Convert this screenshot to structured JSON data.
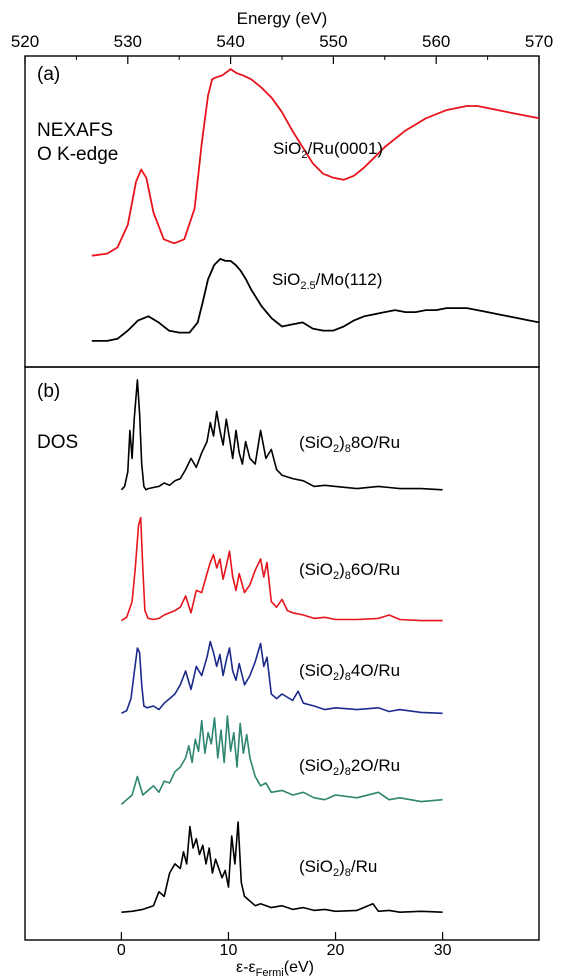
{
  "chart_data": [
    {
      "type": "line",
      "panel_label": "(a)",
      "annotation_lines": [
        "NEXAFS",
        "O K-edge"
      ],
      "xlabel": "Energy (eV)",
      "xlim": [
        520,
        570
      ],
      "xticks": [
        520,
        530,
        540,
        550,
        560,
        570
      ],
      "yticks": "none",
      "series": [
        {
          "label_parts": [
            [
              "SiO",
              "normal"
            ],
            [
              "2",
              "sub"
            ],
            [
              "/Ru(0001)",
              "normal"
            ]
          ],
          "color": "#e8141c",
          "x": [
            526.5,
            528,
            529,
            530,
            530.8,
            531.3,
            531.8,
            532.5,
            533.5,
            534.5,
            535.5,
            536.5,
            537.2,
            537.8,
            538.2,
            538.6,
            539.2,
            540,
            540.6,
            541.2,
            542,
            543,
            544,
            545,
            546,
            547,
            548,
            549,
            550,
            551,
            552,
            553,
            554,
            555,
            556,
            557,
            558,
            559,
            560,
            561,
            562,
            563,
            564,
            565,
            566,
            567,
            568,
            569,
            570
          ],
          "y": [
            0.07,
            0.08,
            0.11,
            0.22,
            0.43,
            0.49,
            0.45,
            0.28,
            0.15,
            0.13,
            0.15,
            0.3,
            0.62,
            0.85,
            0.93,
            0.94,
            0.95,
            0.98,
            0.96,
            0.95,
            0.93,
            0.89,
            0.84,
            0.77,
            0.68,
            0.6,
            0.52,
            0.47,
            0.45,
            0.44,
            0.46,
            0.5,
            0.55,
            0.6,
            0.64,
            0.68,
            0.71,
            0.74,
            0.76,
            0.78,
            0.79,
            0.8,
            0.8,
            0.79,
            0.78,
            0.77,
            0.76,
            0.75,
            0.74
          ]
        },
        {
          "label_parts": [
            [
              "SiO",
              "normal"
            ],
            [
              "2.5",
              "sub"
            ],
            [
              "/Mo(112)",
              "normal"
            ]
          ],
          "color": "#000000",
          "x": [
            526.5,
            528,
            529,
            530,
            531,
            532,
            533,
            534,
            535,
            536,
            536.8,
            537.3,
            537.8,
            538.4,
            539,
            539.5,
            540,
            540.5,
            541,
            541.5,
            542,
            543,
            544,
            545,
            546,
            547,
            548,
            549,
            550,
            551,
            552,
            553,
            554,
            555,
            556,
            557,
            558,
            559,
            560,
            561,
            562,
            563,
            564,
            565,
            566,
            567,
            568,
            569,
            570
          ],
          "y": [
            0.03,
            0.03,
            0.04,
            0.08,
            0.13,
            0.15,
            0.12,
            0.08,
            0.07,
            0.07,
            0.12,
            0.22,
            0.33,
            0.4,
            0.43,
            0.42,
            0.42,
            0.4,
            0.37,
            0.33,
            0.28,
            0.2,
            0.14,
            0.1,
            0.11,
            0.12,
            0.09,
            0.08,
            0.08,
            0.1,
            0.13,
            0.15,
            0.16,
            0.17,
            0.18,
            0.17,
            0.17,
            0.18,
            0.18,
            0.19,
            0.19,
            0.19,
            0.18,
            0.17,
            0.16,
            0.15,
            0.14,
            0.13,
            0.12
          ]
        }
      ]
    },
    {
      "type": "line",
      "panel_label": "(b)",
      "annotation_lines": [
        "DOS"
      ],
      "xlabel_parts": [
        [
          "ε-ε",
          "normal"
        ],
        [
          "Fermi",
          "sub"
        ],
        [
          "(eV)",
          "normal"
        ]
      ],
      "xlim": [
        -9,
        39
      ],
      "xticks": [
        0,
        10,
        20,
        30
      ],
      "yticks": "none",
      "series": [
        {
          "label_parts": [
            [
              "(SiO",
              "normal"
            ],
            [
              "2",
              "sub"
            ],
            [
              ")",
              "normal"
            ],
            [
              "8",
              "sub"
            ],
            [
              "8O/Ru",
              "normal"
            ]
          ],
          "color": "#000000",
          "x": [
            0,
            0.3,
            0.6,
            0.8,
            1.0,
            1.2,
            1.5,
            1.7,
            1.9,
            2.1,
            2.3,
            2.5,
            3,
            3.5,
            4,
            4.5,
            5,
            5.5,
            6,
            6.5,
            7,
            7.5,
            8,
            8.3,
            8.6,
            8.9,
            9.2,
            9.5,
            9.8,
            10.1,
            10.4,
            10.7,
            11,
            11.3,
            11.6,
            12,
            12.5,
            13,
            13.5,
            14,
            14.5,
            15,
            16,
            17,
            18,
            19,
            20,
            22,
            24,
            25,
            26,
            28,
            30
          ],
          "y": [
            0.02,
            0.05,
            0.18,
            0.55,
            0.3,
            0.65,
            1.0,
            0.7,
            0.25,
            0.05,
            0.02,
            0.03,
            0.04,
            0.05,
            0.08,
            0.06,
            0.1,
            0.12,
            0.2,
            0.3,
            0.22,
            0.35,
            0.45,
            0.62,
            0.5,
            0.72,
            0.55,
            0.42,
            0.65,
            0.48,
            0.3,
            0.55,
            0.35,
            0.25,
            0.45,
            0.3,
            0.25,
            0.55,
            0.3,
            0.38,
            0.2,
            0.15,
            0.12,
            0.1,
            0.05,
            0.06,
            0.05,
            0.03,
            0.05,
            0.04,
            0.03,
            0.03,
            0.02
          ]
        },
        {
          "label_parts": [
            [
              "(SiO",
              "normal"
            ],
            [
              "2",
              "sub"
            ],
            [
              ")",
              "normal"
            ],
            [
              "8",
              "sub"
            ],
            [
              "6O/Ru",
              "normal"
            ]
          ],
          "color": "#e8141c",
          "x": [
            0,
            0.5,
            1.0,
            1.3,
            1.6,
            1.8,
            2.0,
            2.2,
            2.5,
            3,
            3.5,
            4,
            4.5,
            5,
            5.5,
            6,
            6.5,
            7,
            7.5,
            8,
            8.3,
            8.6,
            8.9,
            9.2,
            9.5,
            9.8,
            10.1,
            10.4,
            10.7,
            11,
            11.5,
            12,
            12.5,
            13,
            13.3,
            13.6,
            14,
            14.5,
            15,
            15.5,
            16,
            17,
            18,
            19,
            20,
            22,
            24,
            25,
            26,
            28,
            30
          ],
          "y": [
            0.03,
            0.06,
            0.2,
            0.5,
            0.88,
            0.95,
            0.5,
            0.12,
            0.05,
            0.04,
            0.05,
            0.08,
            0.1,
            0.12,
            0.15,
            0.25,
            0.1,
            0.3,
            0.28,
            0.45,
            0.55,
            0.62,
            0.5,
            0.58,
            0.4,
            0.52,
            0.65,
            0.42,
            0.3,
            0.45,
            0.28,
            0.35,
            0.48,
            0.58,
            0.42,
            0.55,
            0.2,
            0.15,
            0.22,
            0.12,
            0.1,
            0.08,
            0.05,
            0.06,
            0.04,
            0.04,
            0.05,
            0.08,
            0.04,
            0.03,
            0.03
          ]
        },
        {
          "label_parts": [
            [
              "(SiO",
              "normal"
            ],
            [
              "2",
              "sub"
            ],
            [
              ")",
              "normal"
            ],
            [
              "8",
              "sub"
            ],
            [
              "4O/Ru",
              "normal"
            ]
          ],
          "color": "#1c2a8c",
          "x": [
            0,
            0.5,
            0.9,
            1.2,
            1.5,
            1.7,
            1.9,
            2.1,
            2.4,
            3,
            3.5,
            4,
            4.5,
            5,
            5.5,
            6,
            6.5,
            7,
            7.5,
            8,
            8.3,
            8.6,
            8.9,
            9.2,
            9.5,
            9.8,
            10.1,
            10.4,
            10.7,
            11,
            11.5,
            12,
            12.5,
            13,
            13.3,
            13.6,
            14,
            14.5,
            15,
            16,
            16.5,
            17,
            18,
            19,
            20,
            22,
            24,
            25,
            26,
            28,
            30
          ],
          "y": [
            0.04,
            0.07,
            0.2,
            0.48,
            0.75,
            0.7,
            0.35,
            0.12,
            0.1,
            0.12,
            0.08,
            0.15,
            0.2,
            0.25,
            0.35,
            0.5,
            0.3,
            0.55,
            0.45,
            0.65,
            0.82,
            0.7,
            0.55,
            0.68,
            0.45,
            0.62,
            0.75,
            0.5,
            0.4,
            0.58,
            0.35,
            0.45,
            0.6,
            0.8,
            0.55,
            0.65,
            0.25,
            0.2,
            0.25,
            0.18,
            0.28,
            0.15,
            0.12,
            0.08,
            0.1,
            0.08,
            0.1,
            0.06,
            0.08,
            0.05,
            0.04
          ]
        },
        {
          "label_parts": [
            [
              "(SiO",
              "normal"
            ],
            [
              "2",
              "sub"
            ],
            [
              ")",
              "normal"
            ],
            [
              "8",
              "sub"
            ],
            [
              "2O/Ru",
              "normal"
            ]
          ],
          "color": "#2e8570",
          "x": [
            0,
            0.5,
            1.0,
            1.5,
            2,
            2.5,
            3,
            3.5,
            4,
            4.5,
            5,
            5.5,
            6,
            6.3,
            6.6,
            6.9,
            7.2,
            7.5,
            7.8,
            8.1,
            8.4,
            8.7,
            9,
            9.3,
            9.6,
            9.9,
            10.2,
            10.5,
            10.8,
            11.1,
            11.4,
            11.7,
            12,
            12.5,
            13,
            13.5,
            14,
            15,
            16,
            17,
            18,
            19,
            20,
            22,
            24,
            25,
            26,
            28,
            30
          ],
          "y": [
            0.05,
            0.1,
            0.15,
            0.35,
            0.15,
            0.2,
            0.25,
            0.18,
            0.3,
            0.28,
            0.4,
            0.45,
            0.55,
            0.68,
            0.5,
            0.75,
            0.62,
            0.95,
            0.6,
            0.82,
            0.7,
            0.98,
            0.55,
            0.85,
            0.5,
            1.0,
            0.62,
            0.82,
            0.45,
            0.92,
            0.6,
            0.8,
            0.55,
            0.35,
            0.25,
            0.28,
            0.18,
            0.2,
            0.15,
            0.18,
            0.12,
            0.1,
            0.15,
            0.12,
            0.18,
            0.1,
            0.12,
            0.08,
            0.1
          ]
        },
        {
          "label_parts": [
            [
              "(SiO",
              "normal"
            ],
            [
              "2",
              "sub"
            ],
            [
              ")",
              "normal"
            ],
            [
              "8",
              "sub"
            ],
            [
              "/Ru",
              "normal"
            ]
          ],
          "color": "#000000",
          "x": [
            0,
            1,
            2,
            3,
            3.5,
            4,
            4.5,
            5,
            5.5,
            5.8,
            6.1,
            6.4,
            6.7,
            7.0,
            7.3,
            7.6,
            7.9,
            8.2,
            8.5,
            8.8,
            9.1,
            9.4,
            9.7,
            10.0,
            10.3,
            10.6,
            10.9,
            11.2,
            11.5,
            12,
            12.5,
            13,
            14,
            15,
            16,
            17,
            18,
            19,
            20,
            22,
            23.5,
            24,
            25,
            26,
            28,
            30
          ],
          "y": [
            0.03,
            0.04,
            0.06,
            0.1,
            0.25,
            0.2,
            0.45,
            0.55,
            0.5,
            0.68,
            0.55,
            0.95,
            0.72,
            0.82,
            0.65,
            0.75,
            0.55,
            0.72,
            0.45,
            0.6,
            0.5,
            0.4,
            0.48,
            0.3,
            0.85,
            0.55,
            1.0,
            0.35,
            0.2,
            0.15,
            0.1,
            0.12,
            0.08,
            0.1,
            0.06,
            0.08,
            0.05,
            0.06,
            0.04,
            0.05,
            0.12,
            0.04,
            0.05,
            0.03,
            0.04,
            0.03
          ]
        }
      ]
    }
  ]
}
